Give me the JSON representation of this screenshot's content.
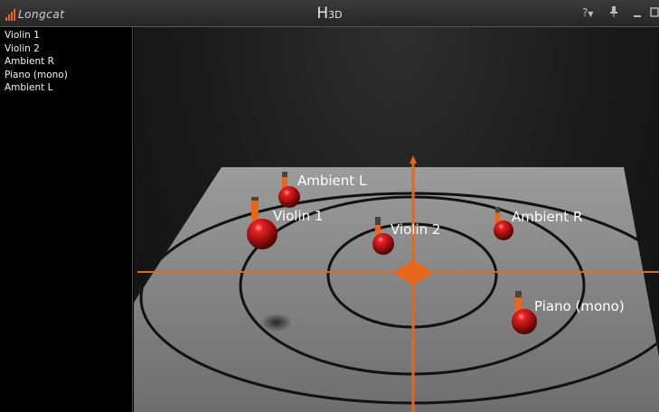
{
  "app": {
    "brand": "Longcat",
    "title_main": "H",
    "title_suffix": "3D",
    "help_label": "?",
    "accent_color": "#e8661a"
  },
  "window_controls": {
    "help_icon": "question-dropdown-icon",
    "pin_icon": "pin-icon",
    "minimize_icon": "minimize-icon",
    "maximize_icon": "maximize-icon"
  },
  "sidebar": {
    "items": [
      {
        "label": "Violin 1"
      },
      {
        "label": "Violin 2"
      },
      {
        "label": "Ambient R"
      },
      {
        "label": "Piano (mono)"
      },
      {
        "label": "Ambient L"
      }
    ]
  },
  "scene": {
    "sources": [
      {
        "label": "Ambient L",
        "level": 0.7
      },
      {
        "label": "Violin 1",
        "level": 0.85
      },
      {
        "label": "Violin 2",
        "level": 0.55
      },
      {
        "label": "Ambient R",
        "level": 0.65
      },
      {
        "label": "Piano (mono)",
        "level": 0.7
      }
    ]
  }
}
